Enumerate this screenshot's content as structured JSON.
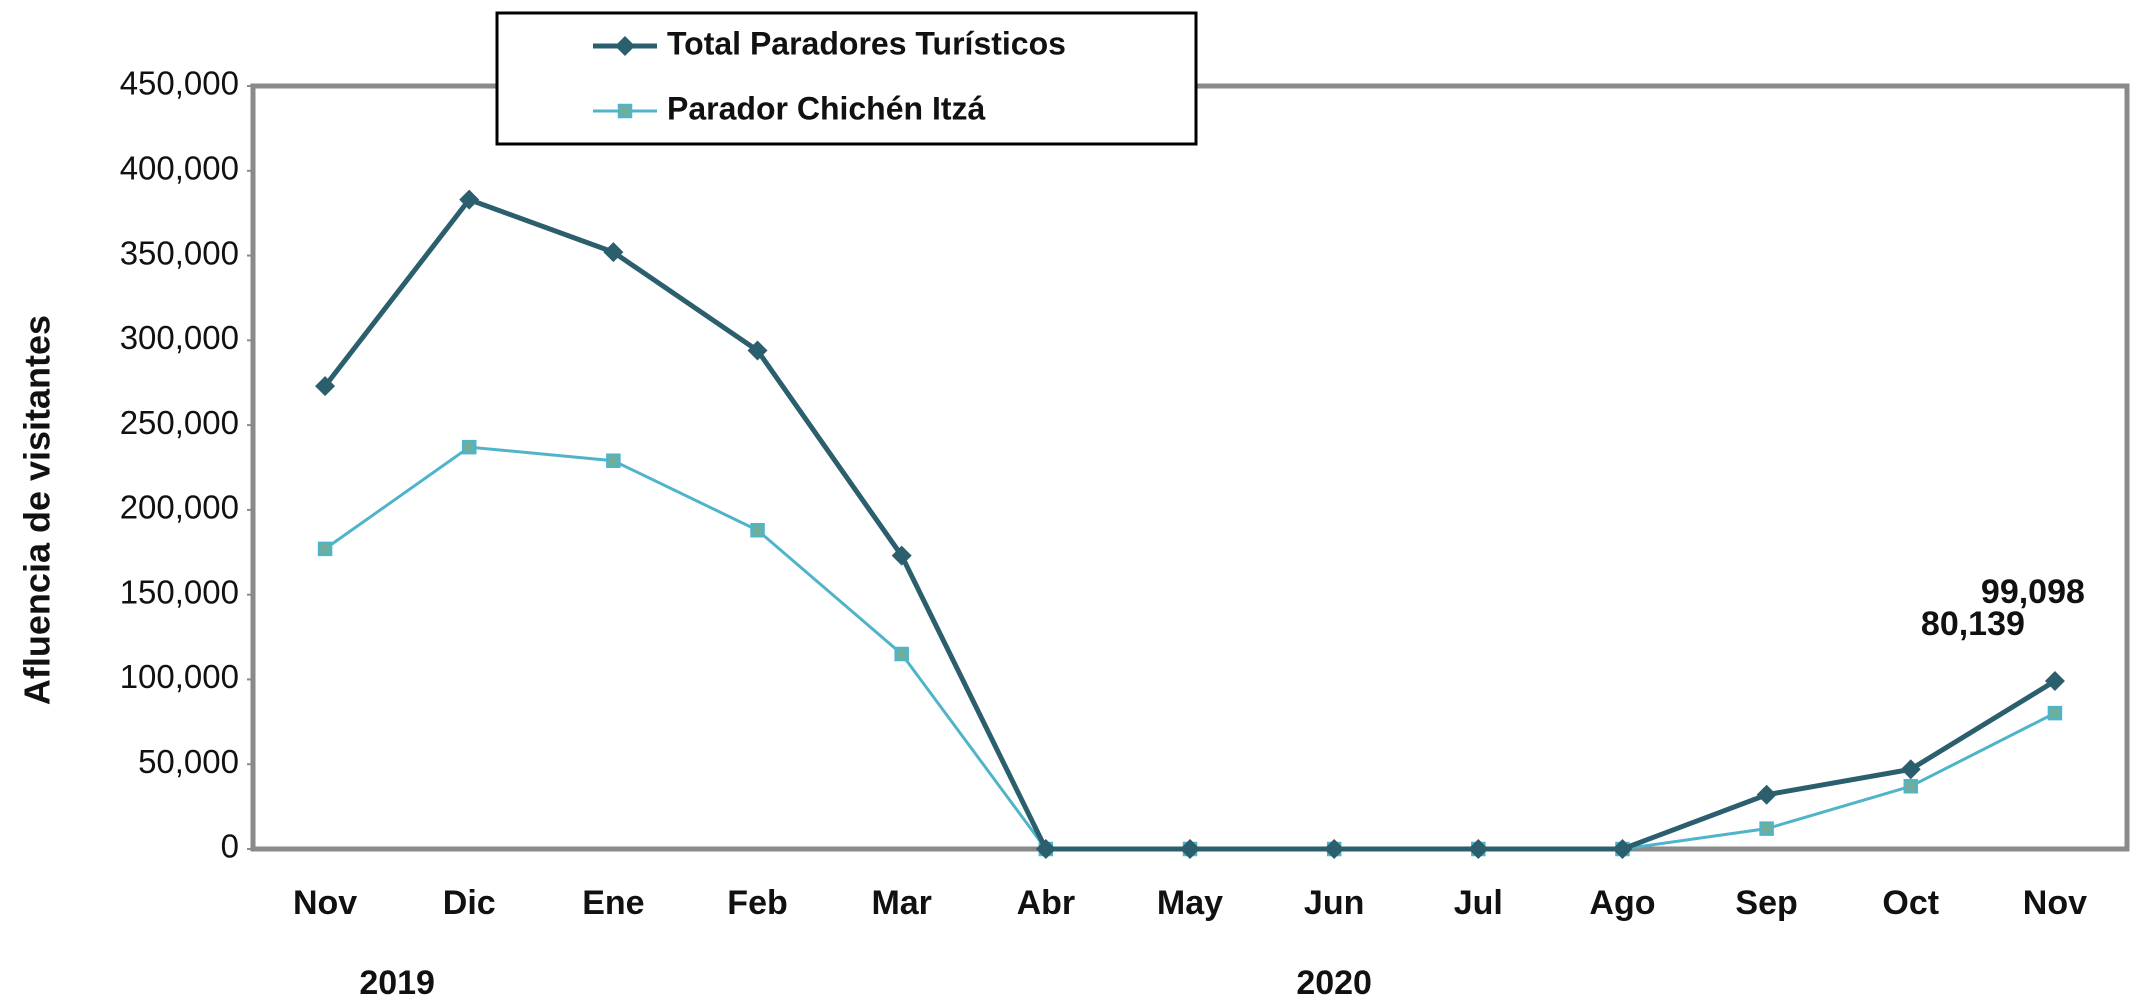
{
  "chart_data": {
    "type": "line",
    "y_label": "Afluencia de visitantes",
    "categories": [
      "Nov",
      "Dic",
      "Ene",
      "Feb",
      "Mar",
      "Abr",
      "May",
      "Jun",
      "Jul",
      "Ago",
      "Sep",
      "Oct",
      "Nov"
    ],
    "years": [
      "2019",
      "2020"
    ],
    "series": [
      {
        "name": "Total Paradores Turísticos",
        "color": "#2b5f6d",
        "marker": "diamond",
        "values": [
          273000,
          383000,
          352000,
          294000,
          173000,
          0,
          0,
          0,
          0,
          0,
          32000,
          47000,
          99098
        ],
        "value_labels": [
          null,
          null,
          null,
          null,
          null,
          null,
          null,
          null,
          null,
          null,
          null,
          null,
          "99,098"
        ]
      },
      {
        "name": "Parador Chichén Itzá",
        "color": "#4fb4c9",
        "marker": "square",
        "values": [
          177000,
          237000,
          229000,
          188000,
          115000,
          0,
          0,
          0,
          0,
          0,
          12000,
          37000,
          80139
        ],
        "value_labels": [
          null,
          null,
          null,
          null,
          null,
          null,
          null,
          null,
          null,
          null,
          null,
          null,
          "80,139"
        ]
      }
    ],
    "ylim": [
      0,
      450000
    ],
    "yticks": [
      0,
      {
        "value": 50000,
        "label": "50,000"
      },
      {
        "value": 100000,
        "label": "100,000"
      },
      {
        "value": 150000,
        "label": "150,000"
      },
      {
        "value": 200000,
        "label": "200,000"
      },
      {
        "value": 250000,
        "label": "250,000"
      },
      {
        "value": 300000,
        "label": "300,000"
      },
      {
        "value": 350000,
        "label": "350,000"
      },
      {
        "value": 400000,
        "label": "400,000"
      },
      {
        "value": 450000,
        "label": "450,000"
      }
    ],
    "grid": false
  }
}
